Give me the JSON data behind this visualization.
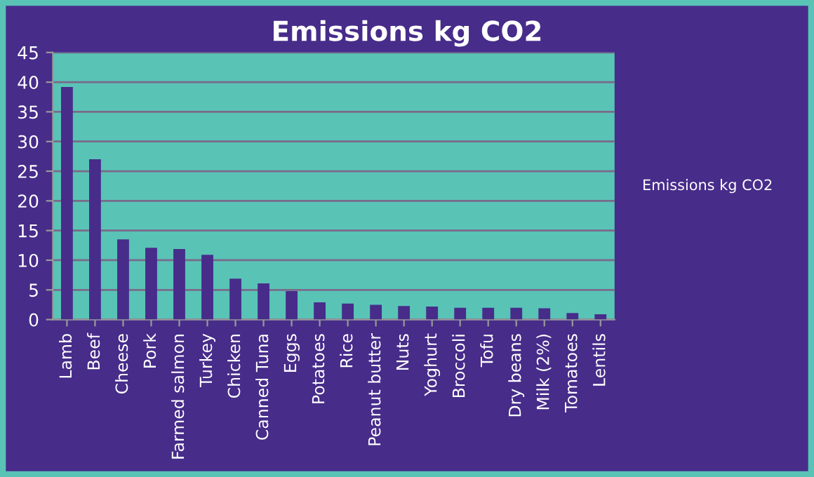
{
  "chart_data": {
    "type": "bar",
    "title": "Emissions kg CO2",
    "categories": [
      "Lamb",
      "Beef",
      "Cheese",
      "Pork",
      "Farmed salmon",
      "Turkey",
      "Chicken",
      "Canned Tuna",
      "Eggs",
      "Potatoes",
      "Rice",
      "Peanut butter",
      "Nuts",
      "Yoghurt",
      "Broccoli",
      "Tofu",
      "Dry beans",
      "Milk (2%)",
      "Tomatoes",
      "Lentils"
    ],
    "series": [
      {
        "name": "Emissions kg CO2",
        "color": "#472c8a",
        "values": [
          39.2,
          27.0,
          13.5,
          12.1,
          11.9,
          10.9,
          6.9,
          6.1,
          4.8,
          2.9,
          2.7,
          2.5,
          2.3,
          2.2,
          2.0,
          2.0,
          2.0,
          1.9,
          1.1,
          0.9
        ]
      }
    ],
    "ylim": [
      0,
      45
    ],
    "yticks": [
      0,
      5,
      10,
      15,
      20,
      25,
      30,
      35,
      40,
      45
    ],
    "grid": "y",
    "legend": "right"
  }
}
